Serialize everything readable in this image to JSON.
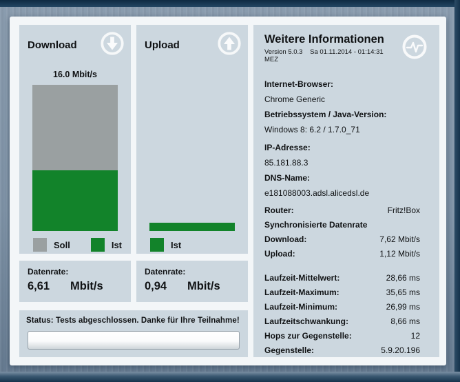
{
  "colors": {
    "soll": "#9aa0a1",
    "ist": "#12832a",
    "panel": "#ccd7df",
    "frame": "#1c3a53"
  },
  "download": {
    "title": "Download",
    "scale_label": "16.0 Mbit/s",
    "legend_soll": "Soll",
    "legend_ist": "Ist",
    "datenrate_label": "Datenrate:",
    "value": "6,61",
    "unit": "Mbit/s"
  },
  "upload": {
    "title": "Upload",
    "legend_ist": "Ist",
    "datenrate_label": "Datenrate:",
    "value": "0,94",
    "unit": "Mbit/s"
  },
  "status": {
    "text": "Status: Tests abgeschlossen. Danke für Ihre Teilnahme!",
    "progress_percent": 0
  },
  "info": {
    "title": "Weitere Informationen",
    "version": "Version 5.0.3",
    "datetime": "Sa 01.11.2014 - 01:14:31 MEZ",
    "stacked": [
      {
        "label": "Internet-Browser:",
        "value": "Chrome Generic"
      },
      {
        "label": "Betriebssystem / Java-Version:",
        "value": "Windows 8: 6.2 / 1.7.0_71"
      },
      {
        "label": "IP-Adresse:",
        "value": "85.181.88.3"
      },
      {
        "label": "DNS-Name:",
        "value": "e181088003.adsl.alicedsl.de"
      }
    ],
    "sync_header": "Synchronisierte Datenrate",
    "kv_rows": [
      {
        "label": "Router:",
        "value": "Fritz!Box"
      },
      {
        "label": "Download:",
        "value": "7,62 Mbit/s"
      },
      {
        "label": "Upload:",
        "value": "1,12 Mbit/s"
      },
      {
        "label": "Laufzeit-Mittelwert:",
        "value": "28,66 ms"
      },
      {
        "label": "Laufzeit-Maximum:",
        "value": "35,65 ms"
      },
      {
        "label": "Laufzeit-Minimum:",
        "value": "26,99 ms"
      },
      {
        "label": "Laufzeitschwankung:",
        "value": "8,66 ms"
      },
      {
        "label": "Hops zur Gegenstelle:",
        "value": "12"
      },
      {
        "label": "Gegenstelle:",
        "value": "5.9.20.196"
      }
    ]
  },
  "charts": {
    "type": "bar",
    "max_mbit": 16.0,
    "download": {
      "soll_mbit": 16.0,
      "ist_mbit": 6.61
    },
    "upload": {
      "ist_mbit": 0.94
    }
  }
}
